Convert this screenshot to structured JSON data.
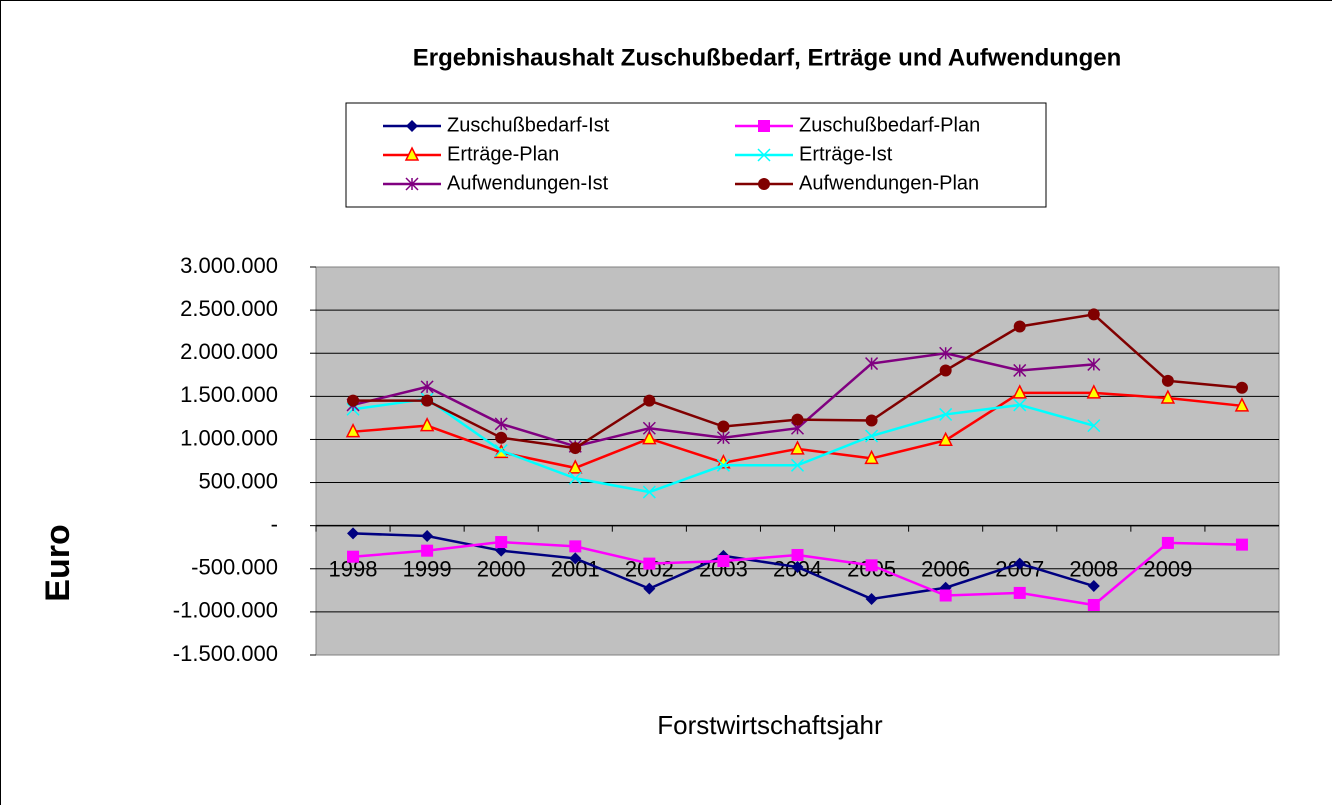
{
  "chart_data": {
    "type": "line",
    "title": "Ergebnishaushalt Zuschußbedarf, Erträge und Aufwendungen",
    "y_label": "Euro",
    "x_label": "Forstwirtschaftsjahr",
    "categories": [
      "1998",
      "1999",
      "2000",
      "2001",
      "2002",
      "2003",
      "2004",
      "2005",
      "2006",
      "2007",
      "2008",
      "2009",
      null
    ],
    "ylim": [
      -1500000,
      3000000
    ],
    "yticks": [
      {
        "value": -1500000,
        "label": "-1.500.000"
      },
      {
        "value": -1000000,
        "label": "-1.000.000"
      },
      {
        "value": -500000,
        "label": "-500.000"
      },
      {
        "value": 0,
        "label": "-"
      },
      {
        "value": 500000,
        "label": "500.000"
      },
      {
        "value": 1000000,
        "label": "1.000.000"
      },
      {
        "value": 1500000,
        "label": "1.500.000"
      },
      {
        "value": 2000000,
        "label": "2.000.000"
      },
      {
        "value": 2500000,
        "label": "2.500.000"
      },
      {
        "value": 3000000,
        "label": "3.000.000"
      }
    ],
    "grid": true,
    "legend": "top",
    "series": [
      {
        "name": "Zuschußbedarf-Ist",
        "color": "#000080",
        "marker": "diamond",
        "values": [
          -90000,
          -120000,
          -290000,
          -380000,
          -730000,
          -350000,
          -480000,
          -850000,
          -720000,
          -440000,
          -700000,
          null,
          null
        ]
      },
      {
        "name": "Zuschußbedarf-Plan",
        "color": "#ff00ff",
        "marker": "square",
        "values": [
          -360000,
          -290000,
          -190000,
          -240000,
          -440000,
          -410000,
          -340000,
          -460000,
          -810000,
          -780000,
          -920000,
          -200000,
          -220000
        ]
      },
      {
        "name": "Erträge-Plan",
        "color": "#ff0000",
        "marker": "triangle",
        "values": [
          1090000,
          1160000,
          850000,
          670000,
          1010000,
          730000,
          890000,
          780000,
          990000,
          1540000,
          1540000,
          1480000,
          1390000
        ]
      },
      {
        "name": "Erträge-Ist",
        "color": "#00ffff",
        "marker": "x",
        "values": [
          1350000,
          1470000,
          870000,
          550000,
          390000,
          700000,
          700000,
          1040000,
          1290000,
          1400000,
          1160000,
          null,
          null
        ]
      },
      {
        "name": "Aufwendungen-Ist",
        "color": "#800080",
        "marker": "star",
        "values": [
          1400000,
          1610000,
          1180000,
          920000,
          1130000,
          1020000,
          1130000,
          1880000,
          2000000,
          1800000,
          1870000,
          null,
          null
        ]
      },
      {
        "name": "Aufwendungen-Plan",
        "color": "#800000",
        "marker": "circle",
        "values": [
          1450000,
          1450000,
          1020000,
          900000,
          1450000,
          1150000,
          1230000,
          1220000,
          1800000,
          2310000,
          2450000,
          1680000,
          1600000
        ]
      }
    ]
  }
}
